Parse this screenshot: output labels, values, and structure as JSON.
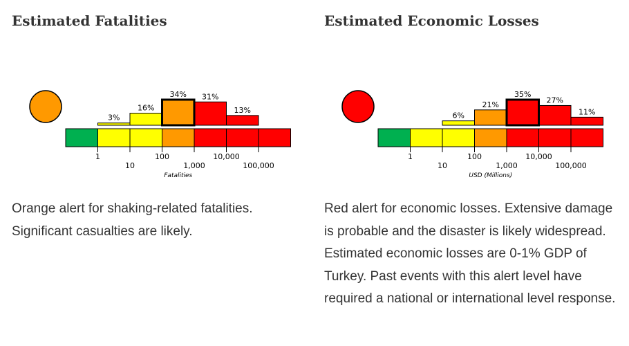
{
  "fatalities": {
    "title": "Estimated Fatalities",
    "alert_color": "#ff9900",
    "description": "Orange alert for shaking-related fatalities. Significant casualties are likely.",
    "chart_data": {
      "type": "bar",
      "categories": [
        "0",
        "1-10",
        "10-100",
        "100-1,000",
        "1,000-10,000",
        "10,000-100,000",
        "100,000+"
      ],
      "values": [
        0,
        3,
        16,
        34,
        31,
        13,
        0
      ],
      "value_labels": [
        "",
        "3%",
        "16%",
        "34%",
        "31%",
        "13%",
        ""
      ],
      "highlight_index": 3,
      "scale_colors": [
        "#00b050",
        "#ffff00",
        "#ffff00",
        "#ff9900",
        "#ff0000",
        "#ff0000",
        "#ff0000"
      ],
      "tick_labels": [
        "1",
        "10",
        "100",
        "1,000",
        "10,000",
        "100,000"
      ],
      "xlabel": "Fatalities",
      "ylim": [
        0,
        34
      ]
    }
  },
  "losses": {
    "title": "Estimated Economic Losses",
    "alert_color": "#ff0000",
    "description": "Red alert for economic losses. Extensive damage is probable and the disaster is likely widespread. Estimated economic losses are 0-1% GDP of Turkey. Past events with this alert level have required a national or international level response.",
    "chart_data": {
      "type": "bar",
      "categories": [
        "0-1",
        "1-10",
        "10-100",
        "100-1,000",
        "1,000-10,000",
        "10,000-100,000",
        "100,000+"
      ],
      "values": [
        0,
        0,
        6,
        21,
        35,
        27,
        11
      ],
      "value_labels": [
        "",
        "",
        "6%",
        "21%",
        "35%",
        "27%",
        "11%"
      ],
      "highlight_index": 4,
      "scale_colors": [
        "#00b050",
        "#ffff00",
        "#ffff00",
        "#ff9900",
        "#ff0000",
        "#ff0000",
        "#ff0000"
      ],
      "tick_labels": [
        "1",
        "10",
        "100",
        "1,000",
        "10,000",
        "100,000"
      ],
      "xlabel": "USD (Millions)",
      "ylim": [
        0,
        35
      ]
    }
  }
}
